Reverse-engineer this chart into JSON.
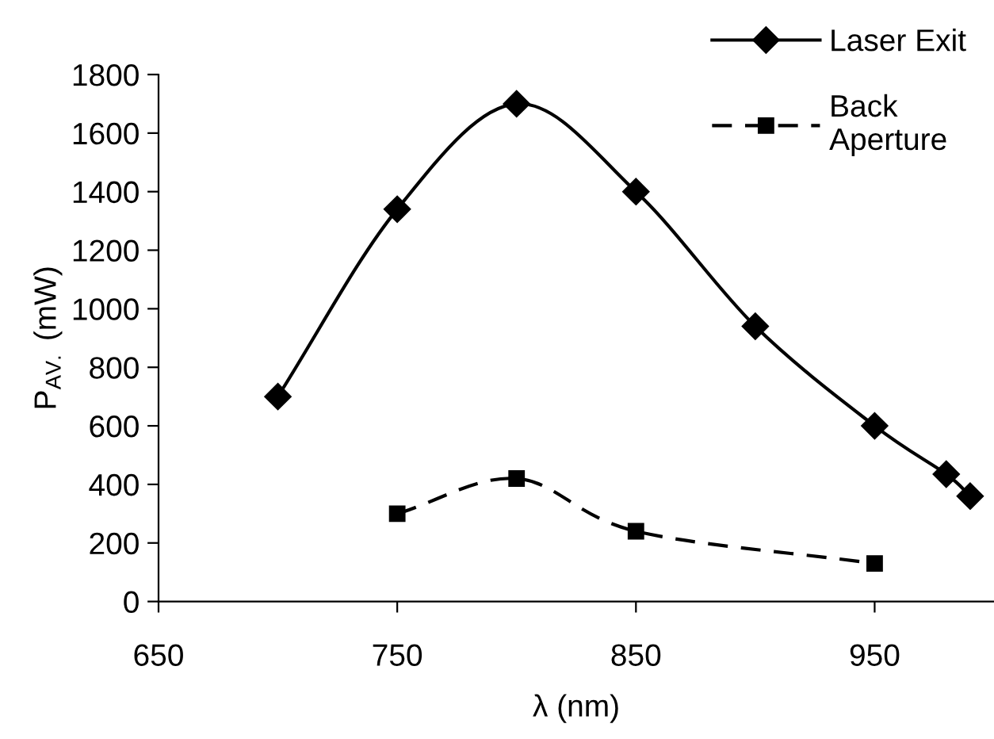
{
  "chart_data": {
    "type": "line",
    "xlabel": "λ (nm)",
    "ylabel": "P$_{AV.}$ (mW)",
    "xlim": [
      650,
      1000
    ],
    "xticks": [
      650,
      750,
      850,
      950
    ],
    "ylim": [
      0,
      1800
    ],
    "yticks": [
      0,
      200,
      400,
      600,
      800,
      1000,
      1200,
      1400,
      1600,
      1800
    ],
    "grid": false,
    "legend": "top right",
    "series": [
      {
        "name": "Laser Exit",
        "color": "#000000",
        "marker": "diamond",
        "line_style": "solid",
        "x": [
          700,
          750,
          800,
          850,
          900,
          950,
          980,
          990
        ],
        "values": [
          700,
          1340,
          1700,
          1400,
          940,
          600,
          435,
          360
        ]
      },
      {
        "name": "Back\nAperture",
        "color": "#000000",
        "marker": "square",
        "line_style": "dashed",
        "x": [
          750,
          800,
          850,
          950
        ],
        "values": [
          300,
          420,
          240,
          130
        ]
      }
    ]
  }
}
